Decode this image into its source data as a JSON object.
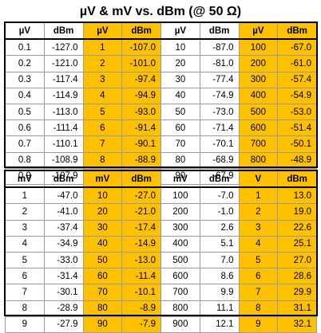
{
  "title": "µV & mV vs. dBm (@ 50 Ω)",
  "colors": {
    "highlight": "#ffc000",
    "border": "#9a9a9a"
  },
  "table_microvolts": {
    "headers": [
      "µV",
      "dBm",
      "µV",
      "dBm",
      "µV",
      "dBm",
      "µV",
      "dBm"
    ],
    "rows": [
      [
        "0.1",
        "-127.0",
        "1",
        "-107.0",
        "10",
        "-87.0",
        "100",
        "-67.0"
      ],
      [
        "0.2",
        "-121.0",
        "2",
        "-101.0",
        "20",
        "-81.0",
        "200",
        "-61.0"
      ],
      [
        "0.3",
        "-117.4",
        "3",
        "-97.4",
        "30",
        "-77.4",
        "300",
        "-57.4"
      ],
      [
        "0.4",
        "-114.9",
        "4",
        "-94.9",
        "40",
        "-74.9",
        "400",
        "-54.9"
      ],
      [
        "0.5",
        "-113.0",
        "5",
        "-93.0",
        "50",
        "-73.0",
        "500",
        "-53.0"
      ],
      [
        "0.6",
        "-111.4",
        "6",
        "-91.4",
        "60",
        "-71.4",
        "600",
        "-51.4"
      ],
      [
        "0.7",
        "-110.1",
        "7",
        "-90.1",
        "70",
        "-70.1",
        "700",
        "-50.1"
      ],
      [
        "0.8",
        "-108.9",
        "8",
        "-88.9",
        "80",
        "-68.9",
        "800",
        "-48.9"
      ],
      [
        "0.9",
        "-107.9",
        "9",
        "-87.9",
        "90",
        "-67.9",
        "900",
        "-47.9"
      ]
    ]
  },
  "table_millivolts": {
    "headers": [
      "mV",
      "dBm",
      "mV",
      "dBm",
      "mV",
      "dBm",
      "V",
      "dBm"
    ],
    "rows": [
      [
        "1",
        "-47.0",
        "10",
        "-27.0",
        "100",
        "-7.0",
        "1",
        "13.0"
      ],
      [
        "2",
        "-41.0",
        "20",
        "-21.0",
        "200",
        "-1.0",
        "2",
        "19.0"
      ],
      [
        "3",
        "-37.4",
        "30",
        "-17.4",
        "300",
        "2.6",
        "3",
        "22.6"
      ],
      [
        "4",
        "-34.9",
        "40",
        "-14.9",
        "400",
        "5.1",
        "4",
        "25.1"
      ],
      [
        "5",
        "-33.0",
        "50",
        "-13.0",
        "500",
        "7.0",
        "5",
        "27.0"
      ],
      [
        "6",
        "-31.4",
        "60",
        "-11.4",
        "600",
        "8.6",
        "6",
        "28.6"
      ],
      [
        "7",
        "-30.1",
        "70",
        "-10.1",
        "700",
        "9.9",
        "7",
        "29.9"
      ],
      [
        "8",
        "-28.9",
        "80",
        "-8.9",
        "800",
        "11.1",
        "8",
        "31.1"
      ],
      [
        "9",
        "-27.9",
        "90",
        "-7.9",
        "900",
        "12.1",
        "9",
        "32.1"
      ]
    ]
  }
}
